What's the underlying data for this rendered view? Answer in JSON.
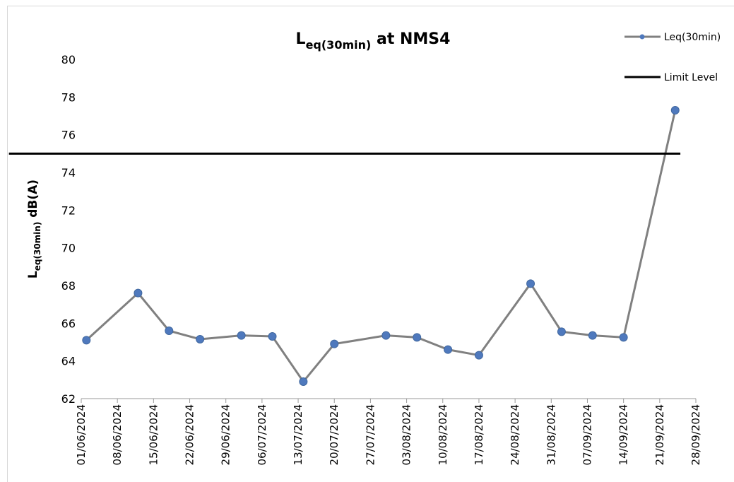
{
  "chart_data": {
    "type": "line",
    "title": [
      "L",
      "eq(30min)",
      " at NMS4"
    ],
    "y_label": [
      "L",
      "eq(30min)",
      " dB(A)"
    ],
    "xlim": [
      "01/06/2024",
      "28/09/2024"
    ],
    "xticks": [
      "01/06/2024",
      "08/06/2024",
      "15/06/2024",
      "22/06/2024",
      "29/06/2024",
      "06/07/2024",
      "13/07/2024",
      "20/07/2024",
      "27/07/2024",
      "03/08/2024",
      "10/08/2024",
      "17/08/2024",
      "24/08/2024",
      "31/08/2024",
      "07/09/2024",
      "14/09/2024",
      "21/09/2024",
      "28/09/2024"
    ],
    "ylim": [
      62,
      80
    ],
    "yticks": [
      62,
      64,
      66,
      68,
      70,
      72,
      74,
      76,
      78,
      80
    ],
    "legend": "top-right",
    "series": [
      {
        "name": "Leq(30min)",
        "color": "#808080",
        "marker_color": "#4f79bd",
        "marker": true,
        "x": [
          "02/06/2024",
          "12/06/2024",
          "18/06/2024",
          "24/06/2024",
          "02/07/2024",
          "08/07/2024",
          "14/07/2024",
          "20/07/2024",
          "30/07/2024",
          "05/08/2024",
          "11/08/2024",
          "17/08/2024",
          "27/08/2024",
          "02/09/2024",
          "08/09/2024",
          "14/09/2024",
          "24/09/2024"
        ],
        "values": [
          65.1,
          67.6,
          65.6,
          65.15,
          65.35,
          65.3,
          62.9,
          64.9,
          65.35,
          65.25,
          64.6,
          64.3,
          68.1,
          65.55,
          65.35,
          65.25,
          77.3
        ]
      },
      {
        "name": "Limit Level",
        "color": "#000000",
        "marker": false,
        "x": [
          "18/05/2024",
          "25/09/2024"
        ],
        "values": [
          75,
          75
        ]
      }
    ]
  }
}
